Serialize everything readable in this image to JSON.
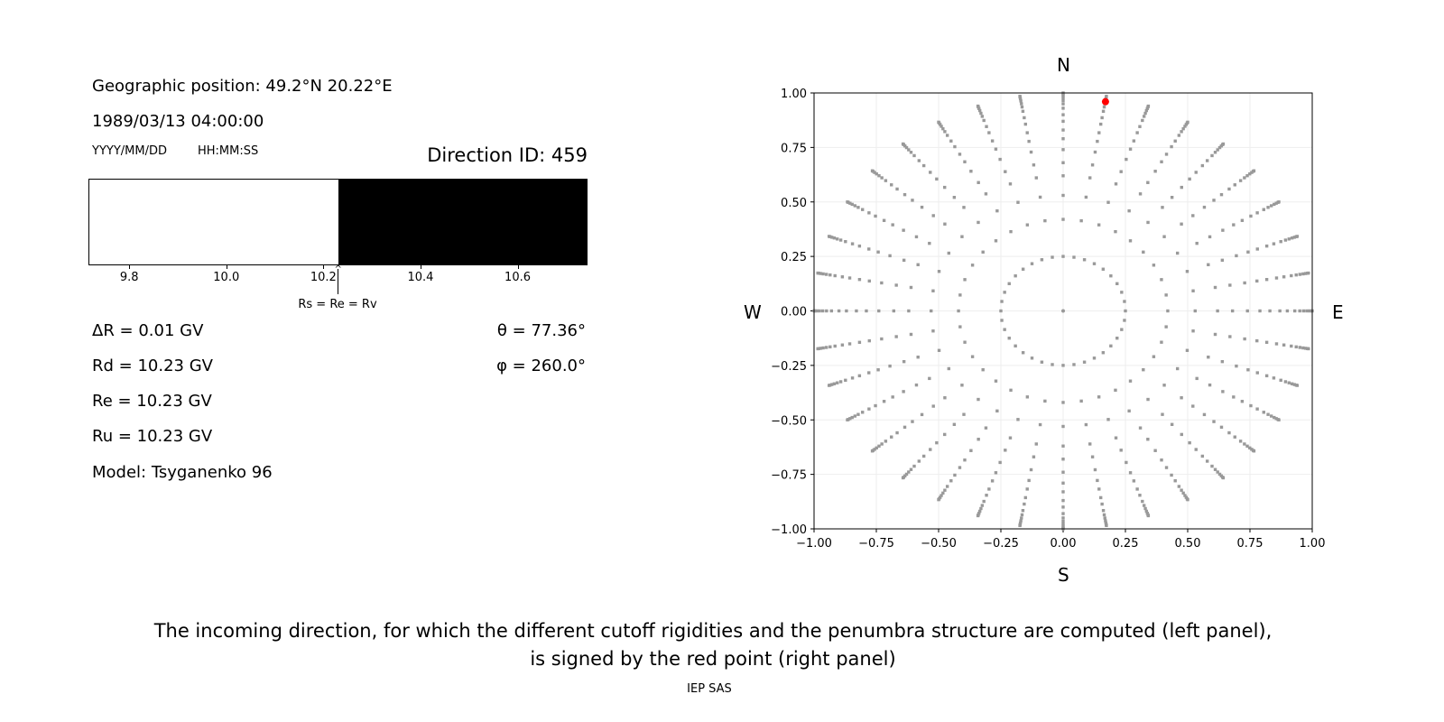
{
  "left_panel": {
    "geo_position": "Geographic position: 49.2°N 20.22°E",
    "datetime": "1989/03/13 04:00:00",
    "date_format": "YYYY/MM/DD",
    "time_format": "HH:MM:SS",
    "direction_id": "Direction ID: 459",
    "delta_r": "ΔR = 0.01 GV",
    "rd": "Rd = 10.23 GV",
    "re": "Re = 10.23 GV",
    "ru": "Ru = 10.23 GV",
    "model": "Model: Tsyganenko 96",
    "theta": "θ = 77.36°",
    "phi": "φ = 260.0°",
    "arrow_label": "Rs = Re = Rv"
  },
  "footer": {
    "caption_line1": "The incoming direction, for which the different cutoff rigidities and the penumbra structure are computed (left panel),",
    "caption_line2": "is signed by the red point (right panel)",
    "credit": "IEP SAS"
  },
  "chart_data": [
    {
      "type": "bar",
      "title": "",
      "xlim": [
        9.716,
        10.744
      ],
      "xticks": [
        "9.8",
        "10.0",
        "10.2",
        "10.4",
        "10.6"
      ],
      "allowed_from": 10.23,
      "colors": {
        "forbidden": "#ffffff",
        "allowed": "#000000"
      }
    },
    {
      "type": "scatter",
      "xlim": [
        -1.0,
        1.0
      ],
      "ylim": [
        -1.0,
        1.0
      ],
      "xticks": [
        "−1.00",
        "−0.75",
        "−0.50",
        "−0.25",
        "0.00",
        "0.25",
        "0.50",
        "0.75",
        "1.00"
      ],
      "yticks": [
        "1.00",
        "0.75",
        "0.50",
        "0.25",
        "0.00",
        "−0.25",
        "−0.50",
        "−0.75",
        "−1.00"
      ],
      "grid": true,
      "compass": {
        "north": "N",
        "south": "S",
        "west": "W",
        "east": "E"
      },
      "azimuth_step_deg": 10,
      "ring_radii": [
        0.25,
        0.42,
        0.53,
        0.62,
        0.68,
        0.74,
        0.79,
        0.83,
        0.87,
        0.9,
        0.93,
        0.95,
        0.965,
        0.978,
        0.988,
        0.996,
        1.0
      ],
      "center_point": [
        0,
        0
      ],
      "highlight_point": {
        "x": 0.17,
        "y": 0.96
      },
      "colors": {
        "points": "#999999",
        "highlight": "#ff0000",
        "grid": "#eeeeee"
      }
    }
  ]
}
